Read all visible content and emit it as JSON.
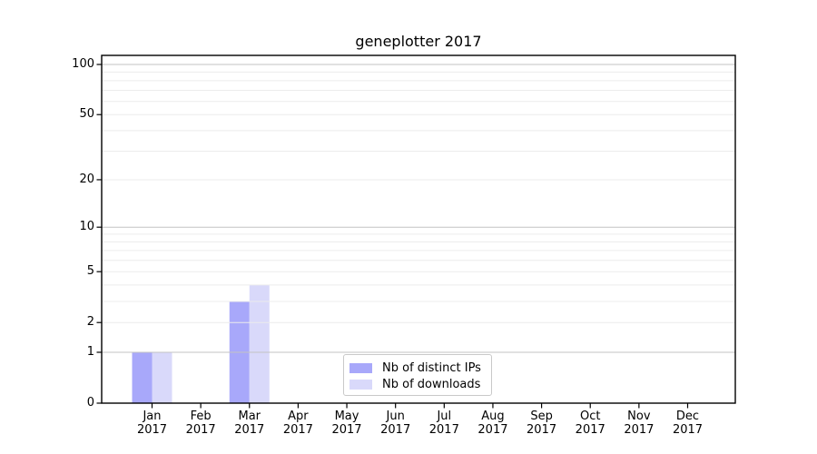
{
  "chart_data": {
    "type": "bar",
    "title": "geneplotter 2017",
    "categories": [
      "Jan",
      "Feb",
      "Mar",
      "Apr",
      "May",
      "Jun",
      "Jul",
      "Aug",
      "Sep",
      "Oct",
      "Nov",
      "Dec"
    ],
    "year_label": "2017",
    "series": [
      {
        "name": "Nb of distinct IPs",
        "color": "#a8a8fa",
        "values": [
          1,
          0,
          3,
          0,
          0,
          0,
          0,
          0,
          0,
          0,
          0,
          0
        ]
      },
      {
        "name": "Nb of downloads",
        "color": "#d9d9fa",
        "values": [
          1,
          0,
          4,
          0,
          0,
          0,
          0,
          0,
          0,
          0,
          0,
          0
        ]
      }
    ],
    "xlabel": "",
    "ylabel": "",
    "yscale": "log1p",
    "ylim": [
      0,
      113
    ],
    "y_ticks": [
      0,
      1,
      2,
      5,
      10,
      20,
      50,
      100
    ],
    "y_major_grid": [
      1,
      10,
      100
    ],
    "y_minor_grid": [
      2,
      3,
      4,
      5,
      6,
      7,
      8,
      9,
      20,
      30,
      40,
      50,
      60,
      70,
      80,
      90
    ],
    "grid": true,
    "legend_position": "lower center"
  },
  "colors": {
    "major_grid": "#c3c3c3",
    "minor_grid": "#ececec",
    "frame": "#000000",
    "tick": "#000000",
    "background": "#ffffff"
  }
}
